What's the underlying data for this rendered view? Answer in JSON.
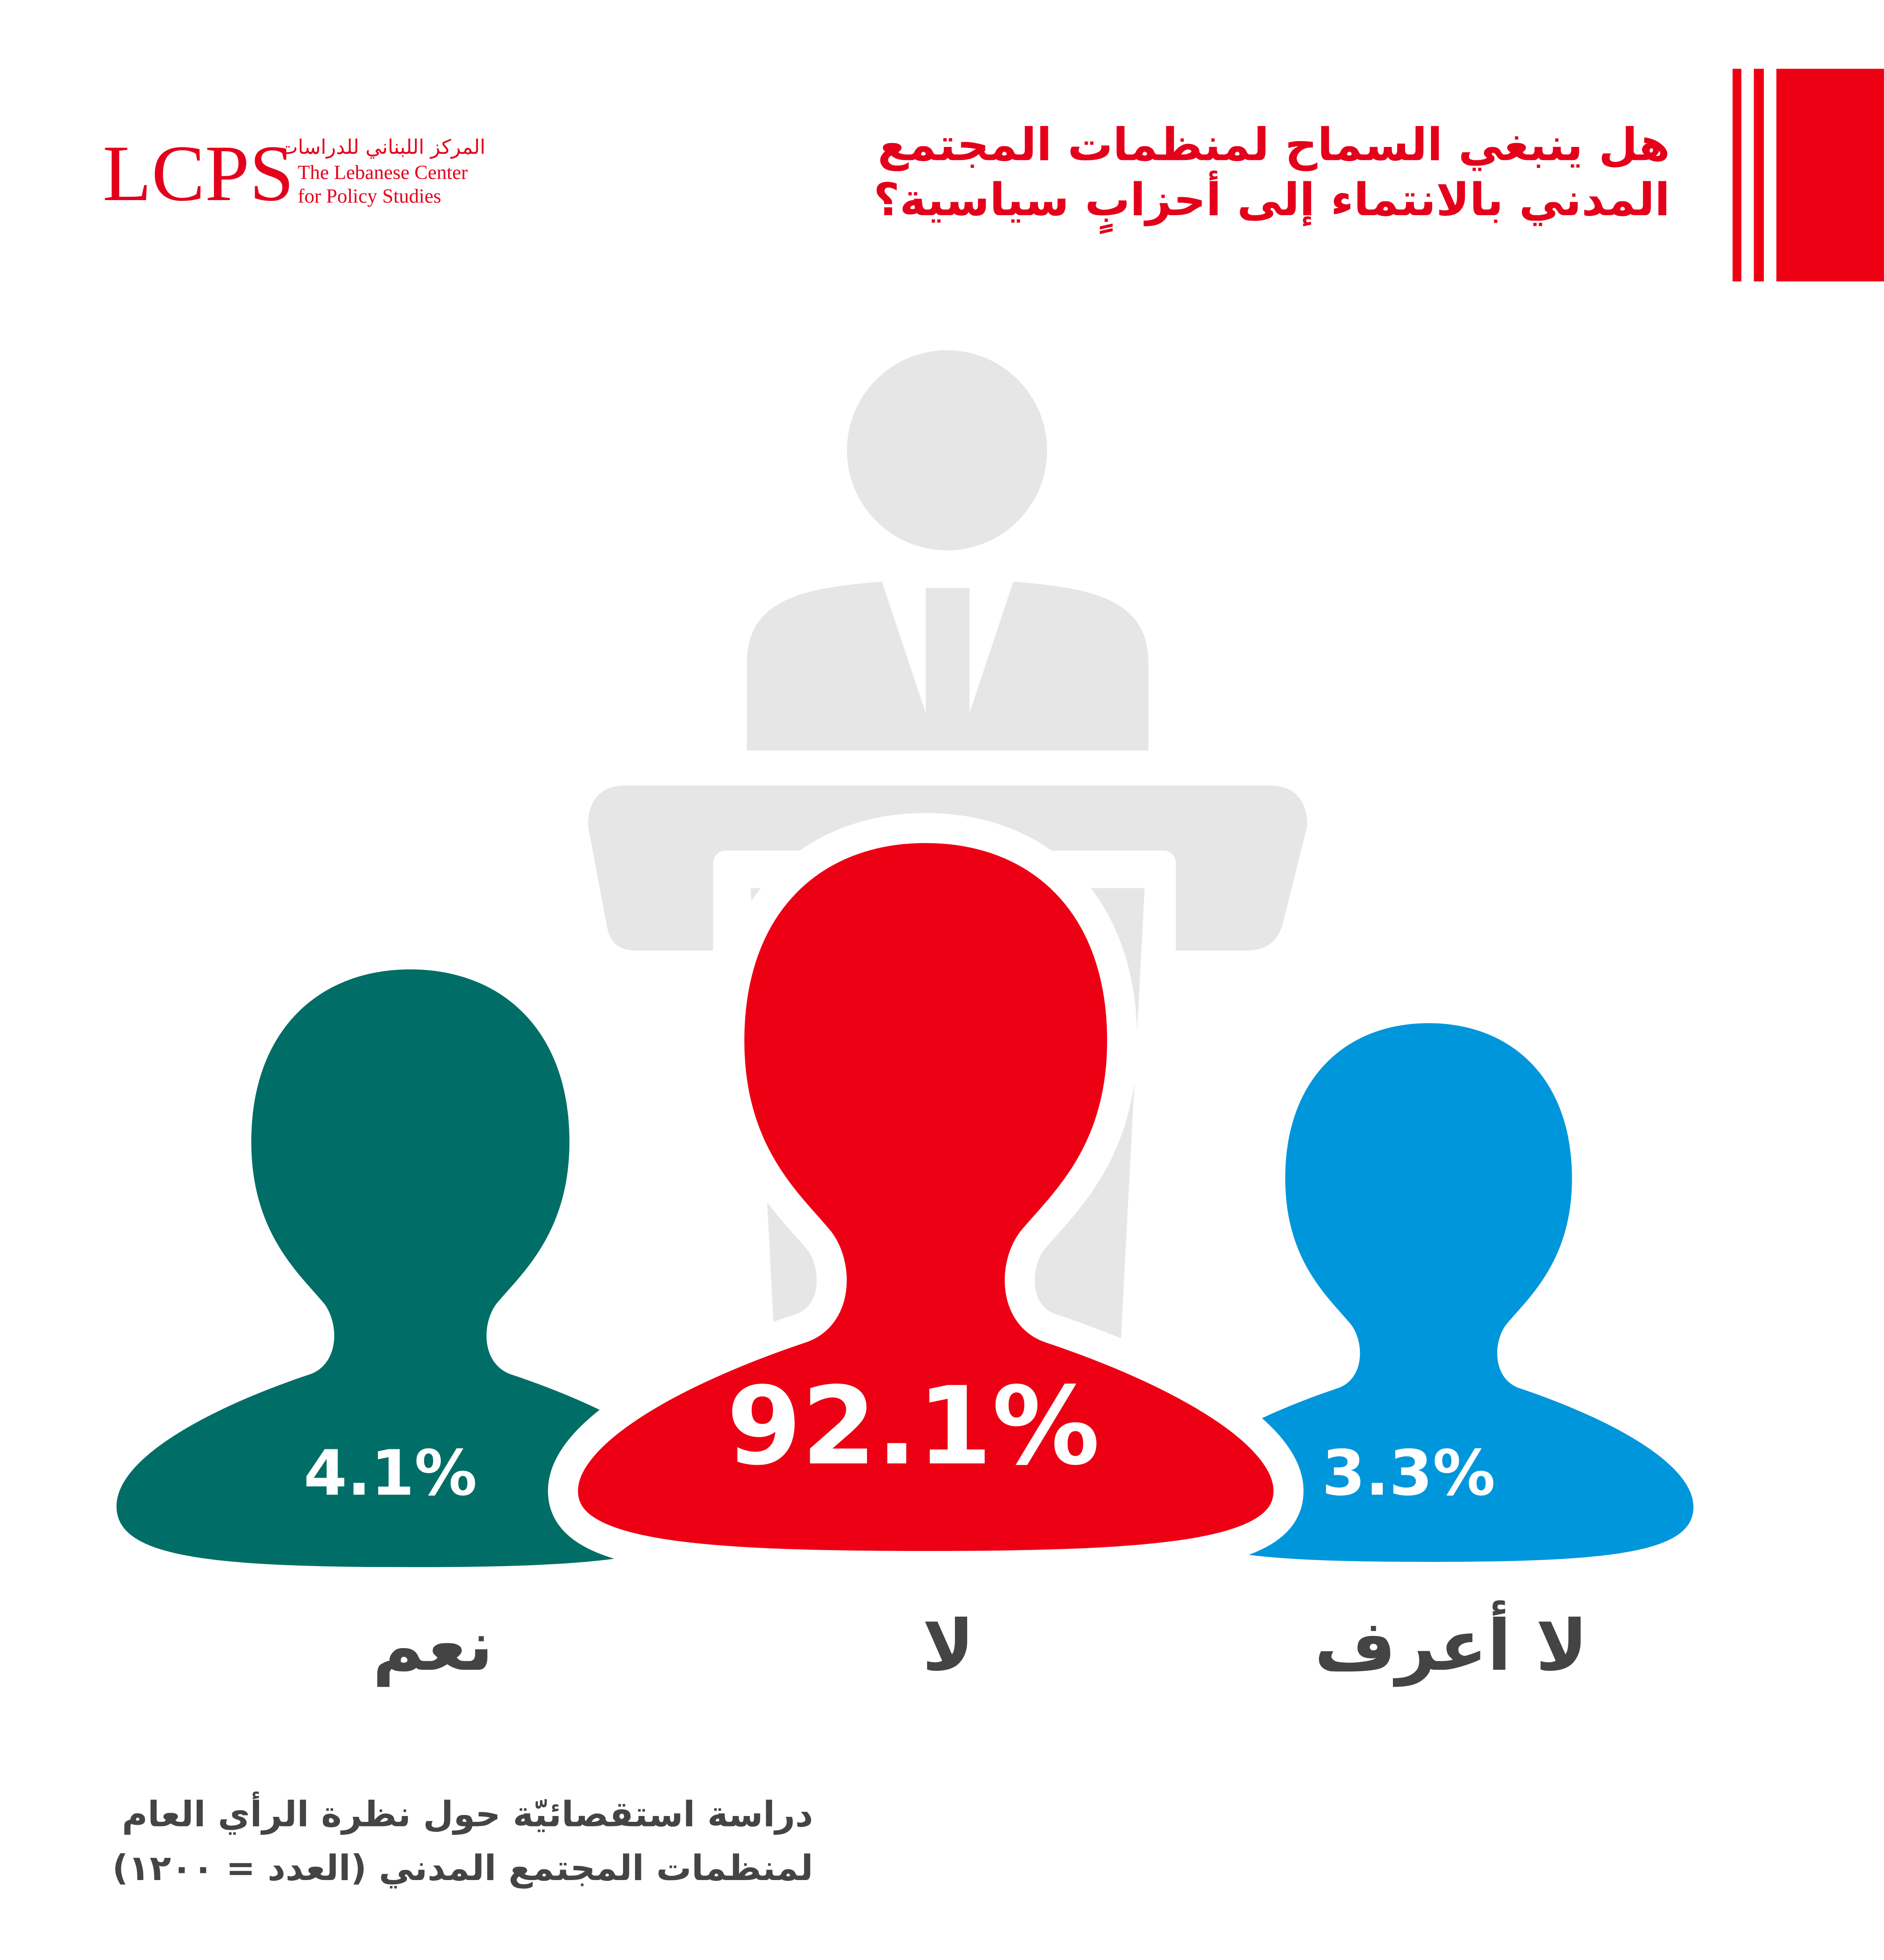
{
  "logo": {
    "mark": "LCPS",
    "arabic": "المركز اللبناني للدراسات",
    "english": [
      "The Lebanese Center",
      "for Policy Studies"
    ]
  },
  "chart_data": {
    "type": "pictogram",
    "title": [
      "هل ينبغي السماح لمنظمات المجتمع",
      "المدني بالانتماء إلى أحزابٍ سياسية؟"
    ],
    "categories": [
      "نعم",
      "لا",
      "لا أعرف"
    ],
    "values": [
      4.1,
      92.1,
      3.3
    ],
    "value_labels": [
      "4.1%",
      "92.1%",
      "3.3%"
    ],
    "colors": [
      "#006e67",
      "#ee0014",
      "#0096db"
    ],
    "source": [
      "دراسة استقصائيّة حول نظرة الرأي العام",
      "لمنظمات المجتمع المدني (العدد = ١٢٠٠)"
    ]
  }
}
